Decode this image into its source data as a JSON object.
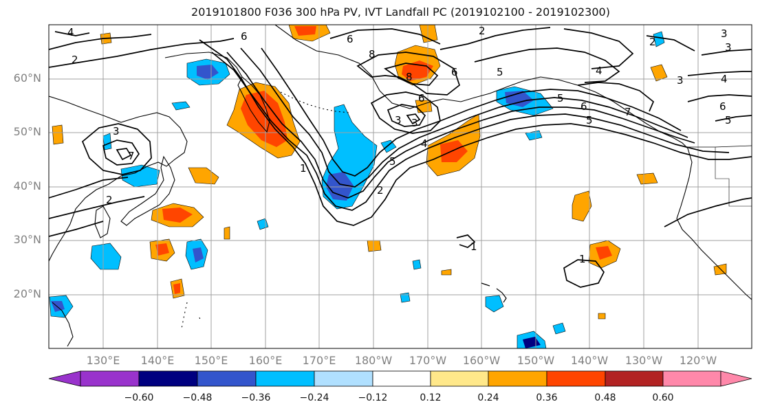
{
  "title": "2019101800 F036 300 hPa PV, IVT Landfall PC (2019102100 - 2019102300)",
  "lat_labels": [
    "60°N",
    "50°N",
    "40°N",
    "30°N",
    "20°N"
  ],
  "lon_labels": [
    "130°E",
    "140°E",
    "150°E",
    "160°E",
    "170°E",
    "180°W",
    "170°W",
    "160°W",
    "150°W",
    "140°W",
    "130°W",
    "120°W"
  ],
  "contour_labels": [
    "4",
    "2",
    "6",
    "6",
    "8",
    "8",
    "6",
    "3",
    "5",
    "2",
    "6",
    "6",
    "4",
    "5",
    "6",
    "5",
    "7",
    "5",
    "3",
    "3",
    "4",
    "3",
    "3",
    "2",
    "1",
    "4",
    "7",
    "5",
    "2",
    "3",
    "2",
    "1",
    "1"
  ],
  "colorbar": {
    "colors": [
      "#9933cc",
      "#000080",
      "#3355cc",
      "#00bfff",
      "#b0e0ff",
      "#ffffff",
      "#ffe88a",
      "#ffa500",
      "#ff4500",
      "#b22222",
      "#ff88aa"
    ],
    "tick_labels": [
      "−0.60",
      "−0.48",
      "−0.36",
      "−0.24",
      "−0.12",
      "0.12",
      "0.24",
      "0.36",
      "0.48",
      "0.60"
    ]
  },
  "colors": {
    "grid": "#a0a0a0",
    "coast": "#000000",
    "contour": "#000000",
    "axis_labels": "#808080"
  }
}
